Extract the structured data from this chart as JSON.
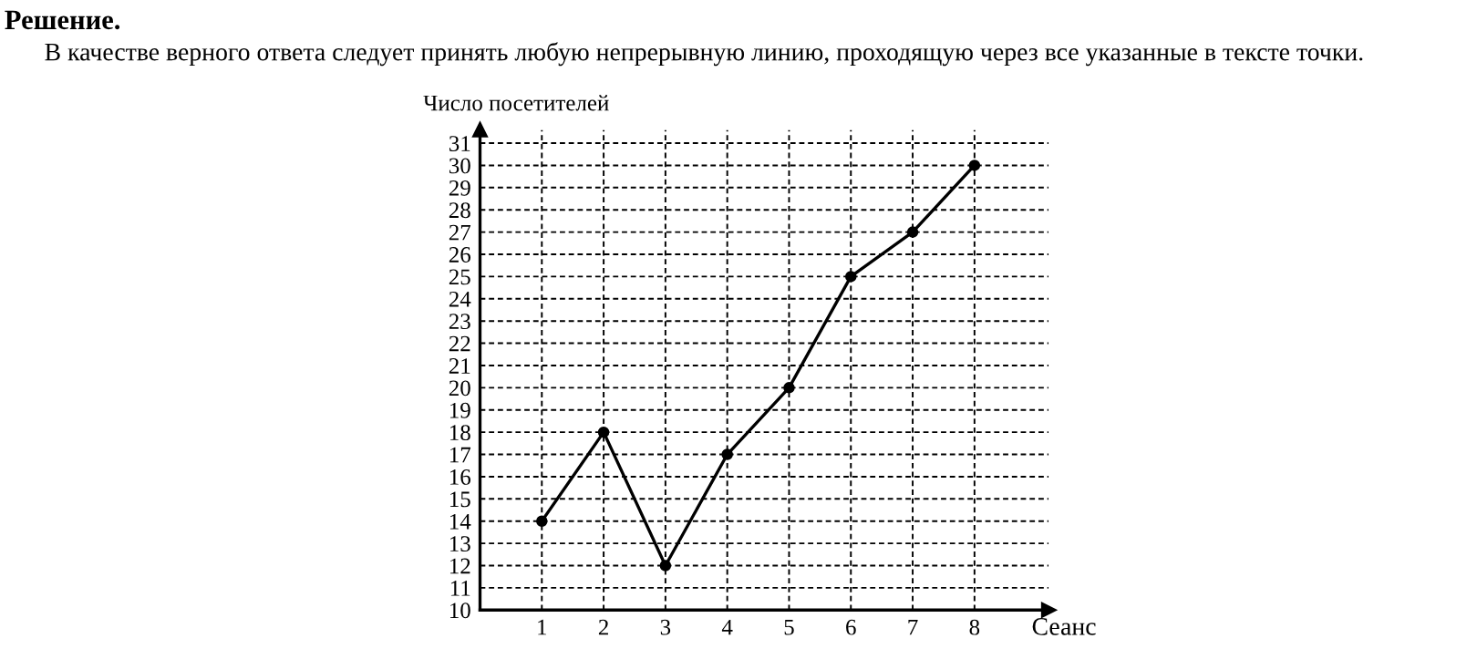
{
  "chart_data": {
    "type": "line",
    "title": "Решение.",
    "subtitle": "В качестве верного ответа следует принять любую непрерывную линию, проходящую через все указанные в тексте точки.",
    "xlabel": "Сеанс",
    "ylabel": "Число посетителей",
    "x": [
      1,
      2,
      3,
      4,
      5,
      6,
      7,
      8
    ],
    "series": [
      {
        "color": "#000000",
        "values": [
          14,
          18,
          12,
          17,
          20,
          25,
          27,
          30
        ]
      }
    ],
    "xlim": [
      0,
      9.2
    ],
    "xticks": [
      1,
      2,
      3,
      4,
      5,
      6,
      7,
      8
    ],
    "ylim": [
      10,
      31.6
    ],
    "yticks": [
      10,
      11,
      12,
      13,
      14,
      15,
      16,
      17,
      18,
      19,
      20,
      21,
      22,
      23,
      24,
      25,
      26,
      27,
      28,
      29,
      30,
      31
    ],
    "grid": true,
    "marker": "circle",
    "line_style": "solid"
  }
}
